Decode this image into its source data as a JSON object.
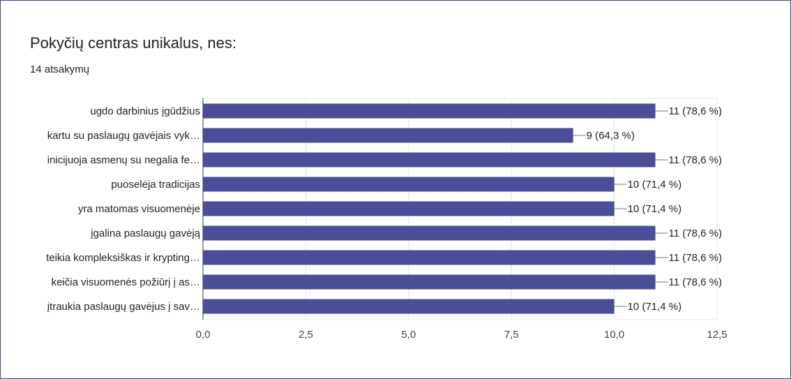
{
  "form": {
    "question": "Pokyčių centras unikalus, nes:",
    "responses": "14 atsakymų"
  },
  "colors": {
    "bar": "#4a4d97",
    "border": "#2e4f8a",
    "grid": "#e5e5e5"
  },
  "chart_data": {
    "type": "bar",
    "orientation": "horizontal",
    "title": "",
    "xlabel": "",
    "ylabel": "",
    "categories": [
      "ugdo darbinius įgūdžius",
      "kartu su paslaugų gavėjais vyk…",
      "inicijuoja asmenų su negalia fe…",
      "puoselėja tradicijas",
      "yra matomas visuomenėje",
      "įgalina paslaugų gavėją",
      "teikia kompleksiškas ir krypting…",
      "keičia visuomenės požiūrį į as…",
      "įtraukia paslaugų gavėjus į sav…"
    ],
    "values": [
      11,
      9,
      11,
      10,
      10,
      11,
      11,
      11,
      10
    ],
    "value_labels": [
      "11 (78,6 %)",
      "9 (64,3 %)",
      "11 (78,6 %)",
      "10 (71,4 %)",
      "10 (71,4 %)",
      "11 (78,6 %)",
      "11 (78,6 %)",
      "11 (78,6 %)",
      "10 (71,4 %)"
    ],
    "xlim": [
      0,
      12.5
    ],
    "xticks": [
      0,
      2.5,
      5,
      7.5,
      10,
      12.5
    ],
    "xtick_labels": [
      "0,0",
      "2,5",
      "5,0",
      "7,5",
      "10,0",
      "12,5"
    ],
    "grid": true,
    "legend": false
  }
}
